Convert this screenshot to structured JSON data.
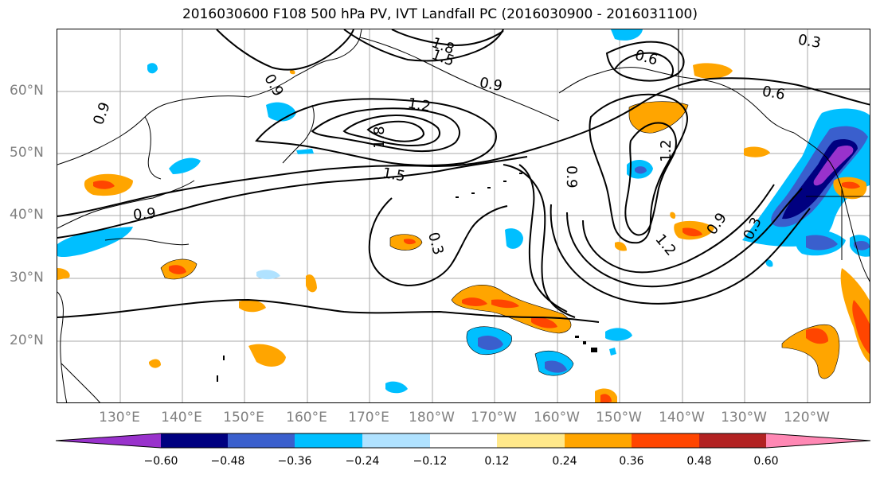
{
  "title": "2016030600 F108 500 hPa PV, IVT Landfall PC (2016030900 - 2016031100)",
  "latitude_labels": [
    "60°N",
    "50°N",
    "40°N",
    "30°N",
    "20°N"
  ],
  "longitude_labels": [
    "130°E",
    "140°E",
    "150°E",
    "160°E",
    "170°E",
    "180°W",
    "170°W",
    "160°W",
    "150°W",
    "140°W",
    "130°W",
    "120°W"
  ],
  "contour_labels": [
    "0.9",
    "0.9",
    "1.8",
    "1.5",
    "0.6",
    "0.9",
    "0.6",
    "1.2",
    "1.8",
    "1.5",
    "0.9",
    "0.3",
    "0.9",
    "1.2",
    "0.3",
    "1.2",
    "0.9",
    "0.3"
  ],
  "colorbar": {
    "ticks": [
      "−0.60",
      "−0.48",
      "−0.36",
      "−0.24",
      "−0.12",
      "0.12",
      "0.24",
      "0.36",
      "0.48",
      "0.60"
    ],
    "colors": [
      "#9932CC",
      "#000080",
      "#3A5FCD",
      "#00BFFF",
      "#B0E2FF",
      "#FFFFFF",
      "#FFE88A",
      "#FFA500",
      "#FF4500",
      "#B22222",
      "#FF88B4"
    ],
    "extend": "both"
  }
}
